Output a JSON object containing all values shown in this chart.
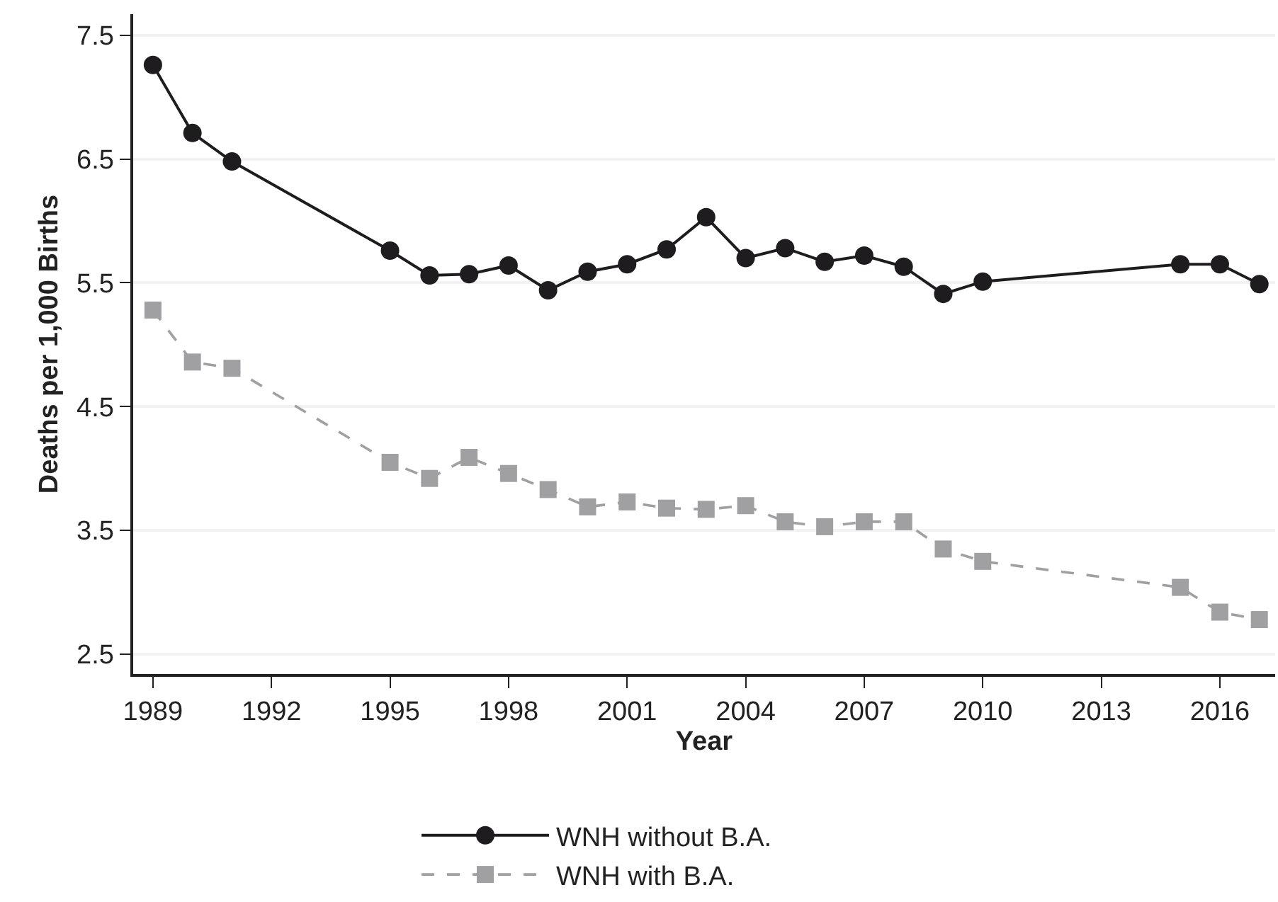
{
  "chart_data": {
    "type": "line",
    "xlabel": "Year",
    "ylabel": "Deaths per 1,000 Births",
    "x": [
      1989,
      1990,
      1991,
      1995,
      1996,
      1997,
      1998,
      1999,
      2000,
      2001,
      2002,
      2003,
      2004,
      2005,
      2006,
      2007,
      2008,
      2009,
      2010,
      2015,
      2016,
      2017
    ],
    "series": [
      {
        "name": "WNH without B.A.",
        "color": "#1e1c1e",
        "marker": "circle",
        "line_style": "solid",
        "values": [
          7.26,
          6.71,
          6.48,
          5.76,
          5.56,
          5.57,
          5.64,
          5.44,
          5.59,
          5.65,
          5.77,
          6.03,
          5.7,
          5.78,
          5.67,
          5.72,
          5.63,
          5.41,
          5.51,
          5.65,
          5.65,
          5.49
        ]
      },
      {
        "name": "WNH with B.A.",
        "color": "#a0a0a3",
        "marker": "square",
        "line_style": "dashed",
        "values": [
          5.28,
          4.86,
          4.81,
          4.05,
          3.92,
          4.09,
          3.96,
          3.83,
          3.69,
          3.73,
          3.68,
          3.67,
          3.7,
          3.57,
          3.53,
          3.57,
          3.57,
          3.35,
          3.25,
          3.04,
          2.84,
          2.78
        ]
      }
    ],
    "xlim": [
      1988.5,
      2017.4
    ],
    "ylim": [
      2.34,
      7.67
    ],
    "xticks": [
      1989,
      1992,
      1995,
      1998,
      2001,
      2004,
      2007,
      2010,
      2013,
      2016
    ],
    "yticks": [
      2.5,
      3.5,
      4.5,
      5.5,
      6.5,
      7.5
    ],
    "grid": "y",
    "legend": "bottom"
  }
}
